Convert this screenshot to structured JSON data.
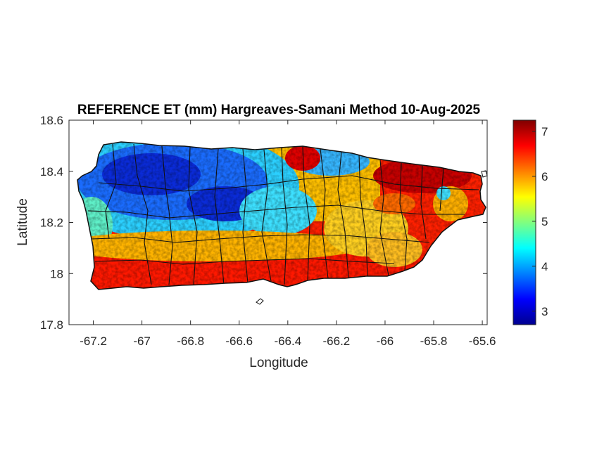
{
  "map": {
    "title": "REFERENCE ET (mm) Hargreaves-Samani Method  10-Aug-2025",
    "xlabel": "Longitude",
    "ylabel": "Latitude",
    "xlim": [
      -67.3,
      -65.58
    ],
    "ylim": [
      17.8,
      18.6
    ],
    "xticks": [
      "-67.2",
      "-67",
      "-66.8",
      "-66.6",
      "-66.4",
      "-66.2",
      "-66",
      "-65.8",
      "-65.6"
    ],
    "yticks": [
      "18.6",
      "18.4",
      "18.2",
      "18",
      "17.8"
    ],
    "region": "Puerto Rico",
    "colormap": "jet",
    "boundaries": "municipality borders, black"
  },
  "colorbar": {
    "min": 2.7,
    "max": 7.25,
    "ticks": [
      "7",
      "6",
      "5",
      "4",
      "3"
    ]
  }
}
